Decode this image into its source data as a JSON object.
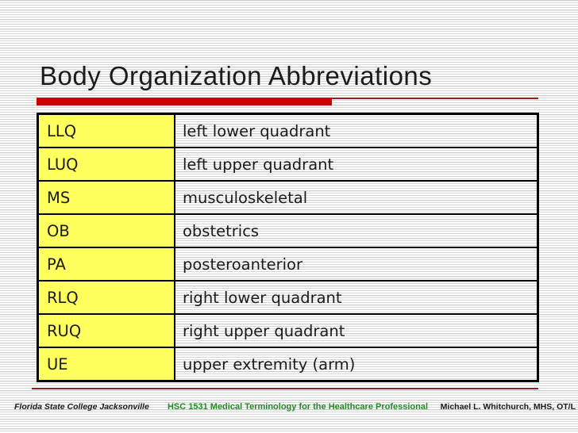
{
  "slide": {
    "title": "Body Organization Abbreviations"
  },
  "table": {
    "rows": [
      {
        "abbr": "LLQ",
        "meaning": "left lower quadrant"
      },
      {
        "abbr": "LUQ",
        "meaning": "left upper quadrant"
      },
      {
        "abbr": "MS",
        "meaning": "musculoskeletal"
      },
      {
        "abbr": "OB",
        "meaning": "obstetrics"
      },
      {
        "abbr": "PA",
        "meaning": "posteroanterior"
      },
      {
        "abbr": "RLQ",
        "meaning": "right lower quadrant"
      },
      {
        "abbr": "RUQ",
        "meaning": "right upper quadrant"
      },
      {
        "abbr": "UE",
        "meaning": "upper extremity (arm)"
      }
    ]
  },
  "footer": {
    "left": "Florida State College Jacksonville",
    "center": "HSC 1531 Medical Terminology for the Healthcare Professional",
    "right": "Michael L. Whitchurch, MHS, OT/L"
  },
  "colors": {
    "accent_red": "#cc0000",
    "underline_thin_red": "#9e1a1a",
    "footer_line_red": "#8e2020",
    "cell_yellow": "#ffff5e",
    "footer_green": "#228B22"
  }
}
